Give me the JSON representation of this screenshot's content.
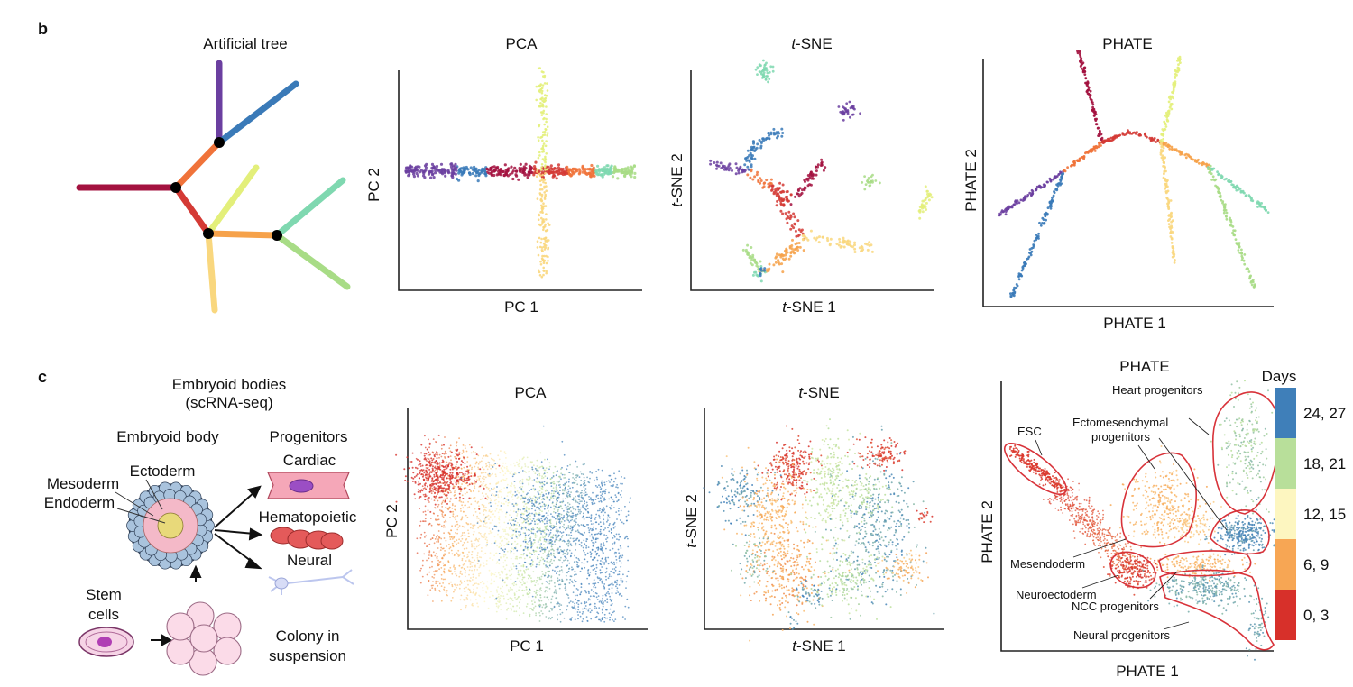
{
  "panels": {
    "b": {
      "letter": "b",
      "tree_title": "Artificial tree",
      "pca": {
        "title": "PCA",
        "xlabel": "PC 1",
        "ylabel": "PC 2"
      },
      "tsne": {
        "title_italic": "t",
        "title_rest": "-SNE",
        "xlabel_italic": "t",
        "xlabel_rest": "-SNE 1",
        "ylabel_italic": "t",
        "ylabel_rest": "-SNE 2"
      },
      "phate": {
        "title": "PHATE",
        "xlabel": "PHATE 1",
        "ylabel": "PHATE 2"
      }
    },
    "c": {
      "letter": "c",
      "schematic": {
        "title_line1": "Embryoid bodies",
        "title_line2": "(scRNA-seq)",
        "embryoid_body": "Embryoid body",
        "progenitors": "Progenitors",
        "cardiac": "Cardiac",
        "ectoderm": "Ectoderm",
        "mesoderm": "Mesoderm",
        "endoderm": "Endoderm",
        "hematopoietic": "Hematopoietic",
        "neural": "Neural",
        "stem_line1": "Stem",
        "stem_line2": "cells",
        "colony_line1": "Colony in",
        "colony_line2": "suspension"
      },
      "pca": {
        "title": "PCA",
        "xlabel": "PC 1",
        "ylabel": "PC 2"
      },
      "tsne": {
        "title_italic": "t",
        "title_rest": "-SNE",
        "xlabel_italic": "t",
        "xlabel_rest": "-SNE 1",
        "ylabel_italic": "t",
        "ylabel_rest": "-SNE 2"
      },
      "phate": {
        "title": "PHATE",
        "xlabel": "PHATE 1",
        "ylabel": "PHATE 2",
        "annotations": {
          "esc": "ESC",
          "heart": "Heart progenitors",
          "ecto_line1": "Ectomesenchymal",
          "ecto_line2": "progenitors",
          "mesendoderm": "Mesendoderm",
          "neuroectoderm": "Neuroectoderm",
          "ncc": "NCC progenitors",
          "neural": "Neural progenitors"
        }
      },
      "legend": {
        "title": "Days",
        "entries": [
          {
            "label": "24, 27",
            "color": "#3f7fb9"
          },
          {
            "label": "18, 21",
            "color": "#b8df9a"
          },
          {
            "label": "12, 15",
            "color": "#fdf6c0"
          },
          {
            "label": "6, 9",
            "color": "#f7a654"
          },
          {
            "label": "0, 3",
            "color": "#d7302a"
          }
        ]
      }
    }
  },
  "colors": {
    "branch_purple": "#6b3fa0",
    "branch_blue": "#3a7ab8",
    "branch_crimson": "#a3123f",
    "branch_red": "#d43a35",
    "branch_orange": "#f0733a",
    "branch_lightorange": "#f6a24a",
    "branch_yellowgreen": "#e3ef7a",
    "branch_yellow": "#f9d77e",
    "branch_teal": "#7fd8b0",
    "branch_green": "#a8dc86",
    "outline_red": "#d8333a"
  }
}
